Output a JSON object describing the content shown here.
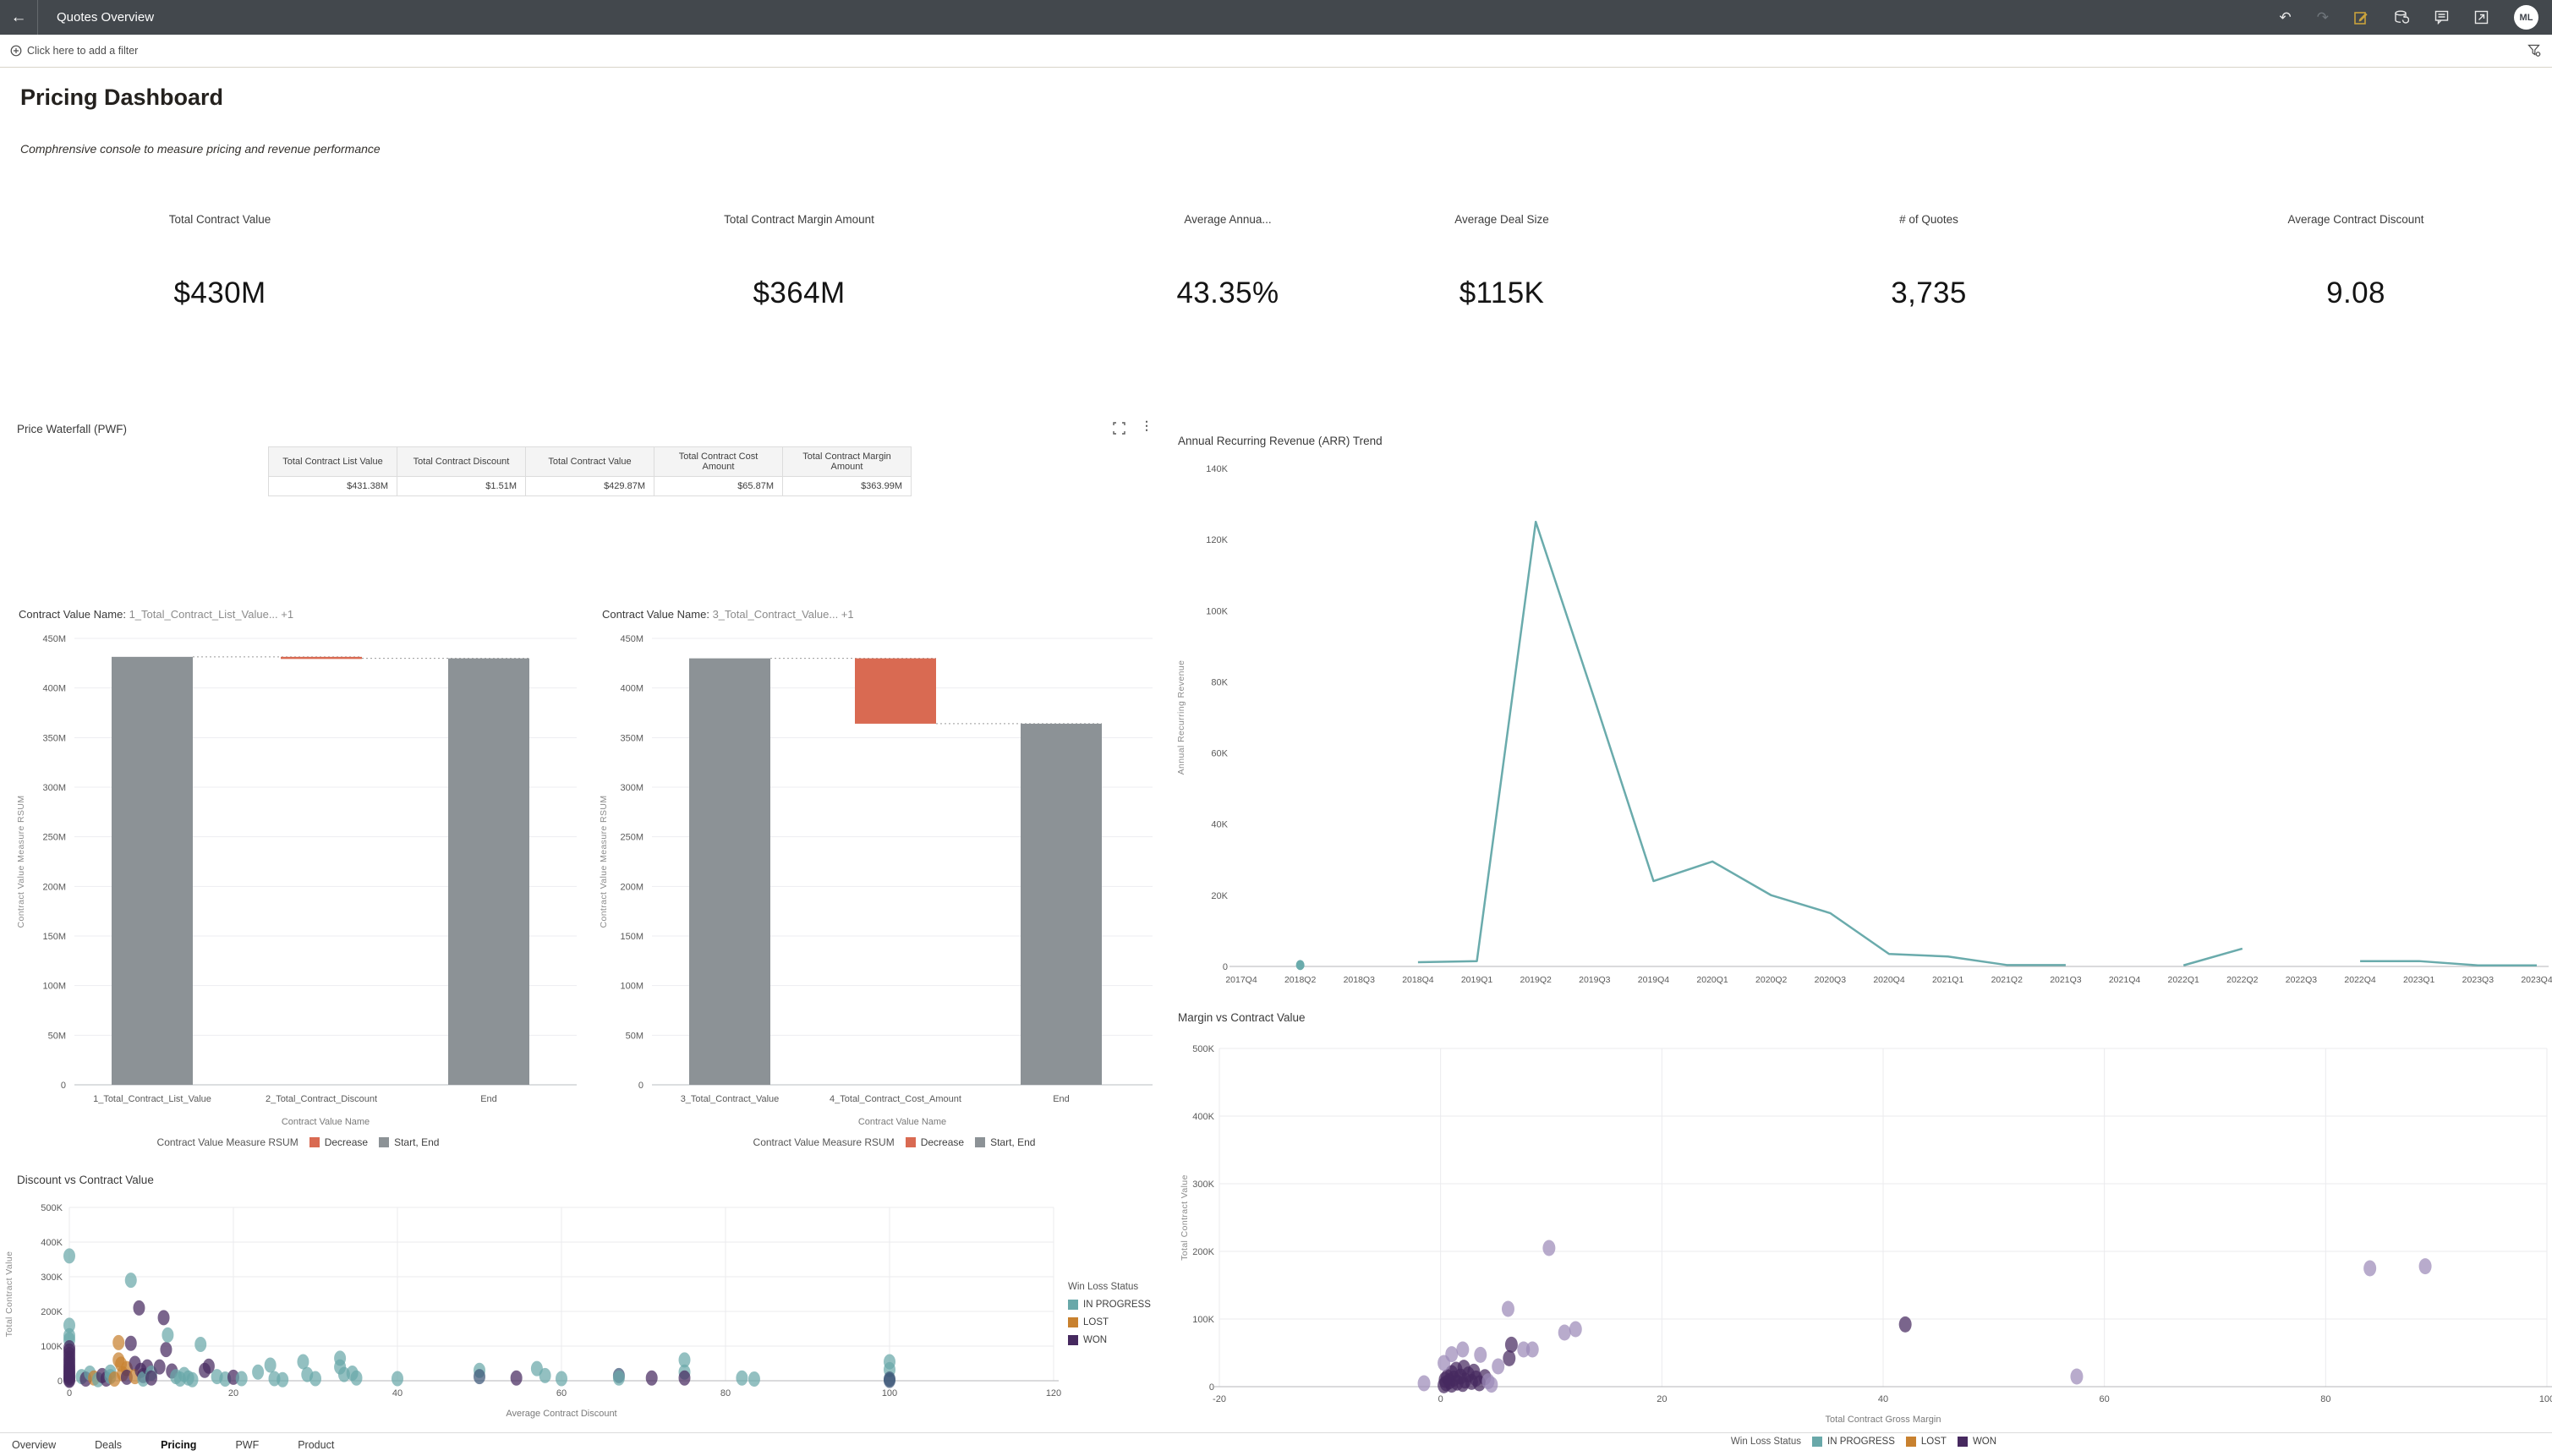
{
  "topbar": {
    "title": "Quotes Overview",
    "avatar_initials": "ML",
    "icons": [
      "back-arrow",
      "undo",
      "redo",
      "edit",
      "dataset-refresh",
      "comment",
      "open-window",
      "avatar"
    ]
  },
  "filterbar": {
    "label": "Click here to add a filter",
    "icons": [
      "add-filter",
      "filter-settings"
    ]
  },
  "page": {
    "title": "Pricing Dashboard",
    "subtitle": "Comphrensive console to measure pricing and revenue performance"
  },
  "kpis": [
    {
      "label": "Total Contract Value",
      "value": "$430M"
    },
    {
      "label": "Total Contract Margin Amount",
      "value": "$364M"
    },
    {
      "label": "Average Annua...",
      "value": "43.35%"
    },
    {
      "label": "Average Deal Size",
      "value": "$115K"
    },
    {
      "label": "# of Quotes",
      "value": "3,735"
    },
    {
      "label": "Average Contract Discount",
      "value": "9.08"
    }
  ],
  "pwf": {
    "title": "Price Waterfall (PWF)",
    "table": {
      "headers": [
        "Total Contract List Value",
        "Total Contract Discount",
        "Total Contract Value",
        "Total Contract Cost Amount",
        "Total Contract Margin Amount"
      ],
      "values": [
        "$431.38M",
        "$1.51M",
        "$429.87M",
        "$65.87M",
        "$363.99M"
      ]
    }
  },
  "tabs": {
    "items": [
      "Overview",
      "Deals",
      "Pricing",
      "PWF",
      "Product"
    ],
    "active": "Pricing"
  },
  "colors": {
    "header_bg": "#43484d",
    "edit_accent": "#c9a23c",
    "teal": "#69a8a9",
    "orange": "#c8812f",
    "purple_dark": "#46295f",
    "purple_light": "#9d8ab8",
    "navy_mix": "#3d5878",
    "waterfall_bar": "#8c9296",
    "waterfall_decrease": "#d96a52"
  },
  "chart_data": [
    {
      "id": "waterfall_pwf_1",
      "type": "bar",
      "subtype": "waterfall",
      "title_prefix": "Contract Value Name:",
      "title_value": "1_Total_Contract_List_Value... +1",
      "xlabel": "Contract Value Name",
      "ylabel": "Contract Value Measure RSUM",
      "ylim": [
        0,
        450000000
      ],
      "ytick_values": [
        0,
        50000000,
        100000000,
        150000000,
        200000000,
        250000000,
        300000000,
        350000000,
        400000000,
        450000000
      ],
      "ytick_labels": [
        "0",
        "50M",
        "100M",
        "150M",
        "200M",
        "250M",
        "300M",
        "350M",
        "400M",
        "450M"
      ],
      "legend_title": "Contract Value Measure RSUM",
      "legend": [
        {
          "label": "Decrease",
          "color": "#d96a52"
        },
        {
          "label": "Start, End",
          "color": "#8c9296"
        }
      ],
      "bars": [
        {
          "label": "1_Total_Contract_List_Value",
          "from": 0,
          "to": 431380000,
          "kind": "startend"
        },
        {
          "label": "2_Total_Contract_Discount",
          "from": 429870000,
          "to": 431380000,
          "kind": "decrease"
        },
        {
          "label": "End",
          "from": 0,
          "to": 429870000,
          "kind": "startend"
        }
      ]
    },
    {
      "id": "waterfall_pwf_2",
      "type": "bar",
      "subtype": "waterfall",
      "title_prefix": "Contract Value Name:",
      "title_value": "3_Total_Contract_Value... +1",
      "xlabel": "Contract Value Name",
      "ylabel": "Contract Value Measure RSUM",
      "ylim": [
        0,
        450000000
      ],
      "ytick_values": [
        0,
        50000000,
        100000000,
        150000000,
        200000000,
        250000000,
        300000000,
        350000000,
        400000000,
        450000000
      ],
      "ytick_labels": [
        "0",
        "50M",
        "100M",
        "150M",
        "200M",
        "250M",
        "300M",
        "350M",
        "400M",
        "450M"
      ],
      "legend_title": "Contract Value Measure RSUM",
      "legend": [
        {
          "label": "Decrease",
          "color": "#d96a52"
        },
        {
          "label": "Start, End",
          "color": "#8c9296"
        }
      ],
      "bars": [
        {
          "label": "3_Total_Contract_Value",
          "from": 0,
          "to": 429870000,
          "kind": "startend"
        },
        {
          "label": "4_Total_Contract_Cost_Amount",
          "from": 363990000,
          "to": 429870000,
          "kind": "decrease"
        },
        {
          "label": "End",
          "from": 0,
          "to": 363990000,
          "kind": "startend"
        }
      ]
    },
    {
      "id": "arr_trend",
      "type": "line",
      "title": "Annual Recurring Revenue (ARR) Trend",
      "ylabel": "Annual Recurring Revenue",
      "color": "#6aabac",
      "ylim": [
        0,
        140000
      ],
      "ytick_values": [
        0,
        20000,
        40000,
        60000,
        80000,
        100000,
        120000,
        140000
      ],
      "ytick_labels": [
        "0",
        "20K",
        "40K",
        "60K",
        "80K",
        "100K",
        "120K",
        "140K"
      ],
      "categories": [
        "2017Q4",
        "2018Q2",
        "2018Q3",
        "2018Q4",
        "2019Q1",
        "2019Q2",
        "2019Q3",
        "2019Q4",
        "2020Q1",
        "2020Q2",
        "2020Q3",
        "2020Q4",
        "2021Q1",
        "2021Q2",
        "2021Q3",
        "2021Q4",
        "2022Q1",
        "2022Q2",
        "2022Q3",
        "2022Q4",
        "2023Q1",
        "2023Q3",
        "2023Q4"
      ],
      "values": [
        null,
        400,
        null,
        1200,
        1500,
        125000,
        75000,
        24000,
        29500,
        20000,
        15000,
        3500,
        2800,
        400,
        400,
        null,
        300,
        5000,
        null,
        1500,
        1500,
        300,
        300
      ]
    },
    {
      "id": "discount_scatter",
      "type": "scatter",
      "title": "Discount vs Contract Value",
      "xlabel": "Average Contract Discount",
      "ylabel": "Total Contract Value",
      "xlim": [
        0,
        120
      ],
      "xtick_values": [
        0,
        20,
        40,
        60,
        80,
        100,
        120
      ],
      "xtick_labels": [
        "0",
        "20",
        "40",
        "60",
        "80",
        "100",
        "120"
      ],
      "ylim": [
        0,
        500000
      ],
      "ytick_values": [
        0,
        100000,
        200000,
        300000,
        400000,
        500000
      ],
      "ytick_labels": [
        "0",
        "100K",
        "200K",
        "300K",
        "400K",
        "500K"
      ],
      "legend_title": "Win Loss Status",
      "legend": [
        {
          "label": "IN PROGRESS",
          "color": "#69a8a9"
        },
        {
          "label": "LOST",
          "color": "#c8812f"
        },
        {
          "label": "WON",
          "color": "#46295f"
        }
      ],
      "point_colors": {
        "t": "#69a8a9",
        "o": "#c8812f",
        "p": "#46295f",
        "n": "#3d5878"
      },
      "points": [
        [
          0,
          360000,
          "t"
        ],
        [
          0,
          160000,
          "t"
        ],
        [
          0,
          130000,
          "t"
        ],
        [
          0,
          118000,
          "t"
        ],
        [
          0,
          95000,
          "p"
        ],
        [
          0,
          86000,
          "p"
        ],
        [
          0,
          76000,
          "p"
        ],
        [
          0,
          66000,
          "p"
        ],
        [
          0,
          57000,
          "p"
        ],
        [
          0,
          48000,
          "p"
        ],
        [
          0,
          40000,
          "p"
        ],
        [
          0,
          33000,
          "p"
        ],
        [
          0,
          26000,
          "p"
        ],
        [
          0,
          20000,
          "p"
        ],
        [
          0,
          14000,
          "p"
        ],
        [
          0,
          9000,
          "p"
        ],
        [
          0,
          4000,
          "p"
        ],
        [
          0,
          1000,
          "p"
        ],
        [
          1.5,
          12000,
          "t"
        ],
        [
          2,
          5000,
          "p"
        ],
        [
          2.5,
          22000,
          "t"
        ],
        [
          3,
          8000,
          "o"
        ],
        [
          3.5,
          3000,
          "t"
        ],
        [
          4,
          15000,
          "p"
        ],
        [
          4.5,
          5000,
          "p"
        ],
        [
          5,
          25000,
          "t"
        ],
        [
          5,
          12000,
          "t"
        ],
        [
          5.5,
          5000,
          "o"
        ],
        [
          6,
          110000,
          "o"
        ],
        [
          6,
          60000,
          "o"
        ],
        [
          6.3,
          48000,
          "o"
        ],
        [
          6.5,
          20000,
          "o"
        ],
        [
          7,
          35000,
          "o"
        ],
        [
          7,
          10000,
          "p"
        ],
        [
          7.5,
          290000,
          "t"
        ],
        [
          7.5,
          108000,
          "p"
        ],
        [
          8,
          50000,
          "p"
        ],
        [
          8,
          12000,
          "o"
        ],
        [
          8.5,
          210000,
          "p"
        ],
        [
          8.7,
          30000,
          "p"
        ],
        [
          9,
          15000,
          "p"
        ],
        [
          9,
          5000,
          "t"
        ],
        [
          9.5,
          40000,
          "p"
        ],
        [
          10,
          22000,
          "t"
        ],
        [
          10,
          8000,
          "p"
        ],
        [
          11,
          40000,
          "p"
        ],
        [
          11.5,
          182000,
          "p"
        ],
        [
          11.8,
          90000,
          "p"
        ],
        [
          12,
          132000,
          "t"
        ],
        [
          12.5,
          28000,
          "p"
        ],
        [
          13,
          12000,
          "t"
        ],
        [
          13.5,
          5000,
          "t"
        ],
        [
          14,
          18000,
          "t"
        ],
        [
          14.5,
          8000,
          "t"
        ],
        [
          15,
          3000,
          "t"
        ],
        [
          16,
          105000,
          "t"
        ],
        [
          16.5,
          30000,
          "p"
        ],
        [
          17,
          42000,
          "p"
        ],
        [
          18,
          12000,
          "t"
        ],
        [
          19,
          5000,
          "t"
        ],
        [
          20,
          10000,
          "p"
        ],
        [
          21,
          6000,
          "t"
        ],
        [
          23,
          25000,
          "t"
        ],
        [
          24.5,
          45000,
          "t"
        ],
        [
          25,
          6000,
          "t"
        ],
        [
          26,
          3000,
          "t"
        ],
        [
          28.5,
          55000,
          "t"
        ],
        [
          29,
          18000,
          "t"
        ],
        [
          30,
          6000,
          "t"
        ],
        [
          33,
          65000,
          "t"
        ],
        [
          33,
          40000,
          "t"
        ],
        [
          33.5,
          18000,
          "t"
        ],
        [
          34.5,
          22000,
          "t"
        ],
        [
          35,
          8000,
          "t"
        ],
        [
          40,
          6000,
          "t"
        ],
        [
          50,
          30000,
          "t"
        ],
        [
          50,
          12000,
          "n"
        ],
        [
          54.5,
          8000,
          "p"
        ],
        [
          57,
          35000,
          "t"
        ],
        [
          58,
          15000,
          "t"
        ],
        [
          60,
          6000,
          "t"
        ],
        [
          67,
          15000,
          "n"
        ],
        [
          67,
          8000,
          "t"
        ],
        [
          71,
          8000,
          "p"
        ],
        [
          75,
          60000,
          "t"
        ],
        [
          75,
          25000,
          "t"
        ],
        [
          75,
          8000,
          "p"
        ],
        [
          82,
          8000,
          "t"
        ],
        [
          83.5,
          5000,
          "t"
        ],
        [
          100,
          55000,
          "t"
        ],
        [
          100,
          32000,
          "t"
        ],
        [
          100,
          5000,
          "n"
        ],
        [
          100,
          1000,
          "n"
        ]
      ]
    },
    {
      "id": "margin_scatter",
      "type": "scatter",
      "title": "Margin vs Contract Value",
      "xlabel": "Total Contract Gross Margin",
      "ylabel": "Total Contract Value",
      "xlim": [
        -20,
        100
      ],
      "xtick_values": [
        -20,
        0,
        20,
        40,
        60,
        80,
        100
      ],
      "xtick_labels": [
        "-20",
        "0",
        "20",
        "40",
        "60",
        "80",
        "100"
      ],
      "ylim": [
        0,
        500000
      ],
      "ytick_values": [
        0,
        100000,
        200000,
        300000,
        400000,
        500000
      ],
      "ytick_labels": [
        "0",
        "100K",
        "200K",
        "300K",
        "400K",
        "500K"
      ],
      "legend_title": "Win Loss Status",
      "legend": [
        {
          "label": "IN PROGRESS",
          "color": "#69a8a9"
        },
        {
          "label": "LOST",
          "color": "#c8812f"
        },
        {
          "label": "WON",
          "color": "#46295f"
        }
      ],
      "point_colors": {
        "p": "#46295f",
        "l": "#9d8ab8",
        "t": "#69a8a9"
      },
      "points": [
        [
          -1.5,
          5000,
          "l"
        ],
        [
          0.3,
          2000,
          "p"
        ],
        [
          0.5,
          5000,
          "p"
        ],
        [
          0.8,
          8000,
          "p"
        ],
        [
          1,
          3000,
          "p"
        ],
        [
          1.2,
          12000,
          "p"
        ],
        [
          1.5,
          6000,
          "p"
        ],
        [
          1.8,
          15000,
          "p"
        ],
        [
          2,
          4000,
          "p"
        ],
        [
          2.2,
          9000,
          "p"
        ],
        [
          2.5,
          18000,
          "p"
        ],
        [
          2.8,
          7000,
          "p"
        ],
        [
          3,
          22000,
          "p"
        ],
        [
          3.2,
          12000,
          "p"
        ],
        [
          1,
          20000,
          "p"
        ],
        [
          0.6,
          14000,
          "p"
        ],
        [
          1.4,
          25000,
          "p"
        ],
        [
          2.1,
          28000,
          "p"
        ],
        [
          0.4,
          10000,
          "p"
        ],
        [
          3.5,
          5000,
          "p"
        ],
        [
          4,
          14000,
          "p"
        ],
        [
          4.3,
          8000,
          "l"
        ],
        [
          4.6,
          3000,
          "l"
        ],
        [
          0.3,
          35000,
          "l"
        ],
        [
          1,
          48000,
          "l"
        ],
        [
          2,
          55000,
          "l"
        ],
        [
          3.6,
          47000,
          "l"
        ],
        [
          5.2,
          30000,
          "l"
        ],
        [
          6.4,
          62000,
          "p"
        ],
        [
          6.2,
          42000,
          "p"
        ],
        [
          7.5,
          55000,
          "l"
        ],
        [
          6.1,
          115000,
          "l"
        ],
        [
          8.3,
          55000,
          "l"
        ],
        [
          9.8,
          205000,
          "l"
        ],
        [
          11.2,
          80000,
          "l"
        ],
        [
          12.2,
          85000,
          "l"
        ],
        [
          42,
          92000,
          "p"
        ],
        [
          57.5,
          15000,
          "l"
        ],
        [
          84,
          175000,
          "l"
        ],
        [
          89,
          178000,
          "l"
        ]
      ]
    }
  ]
}
